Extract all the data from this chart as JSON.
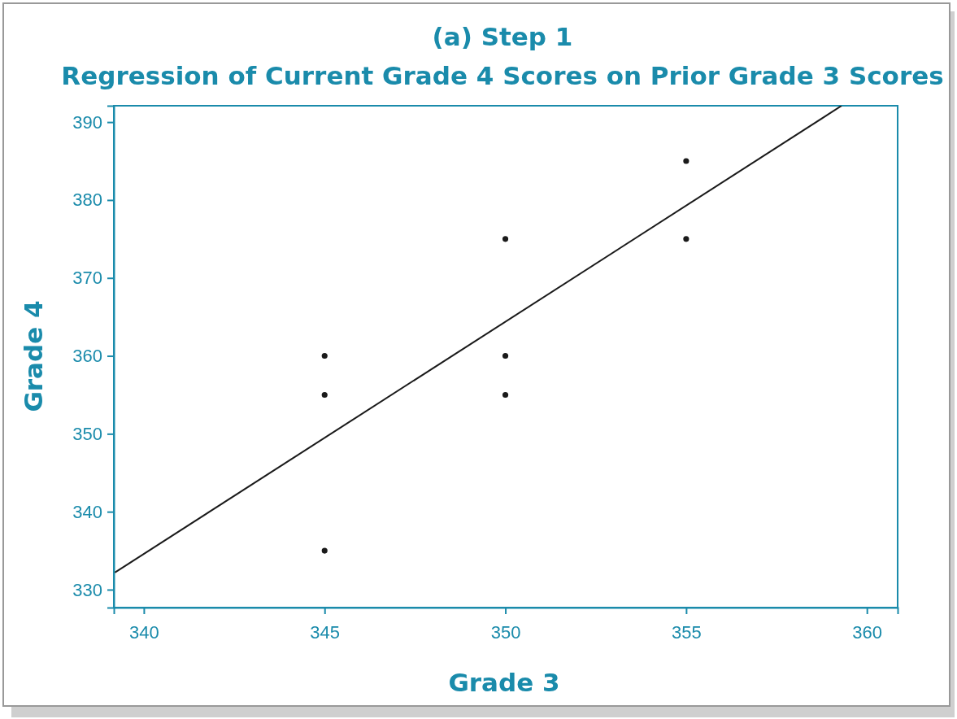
{
  "chart_data": {
    "type": "scatter",
    "title": "(a) Step 1",
    "subtitle": "Regression of Current Grade 4 Scores on Prior Grade 3 Scores",
    "xlabel": "Grade 3",
    "ylabel": "Grade 4",
    "xlim": [
      339.17,
      360.85
    ],
    "ylim": [
      327.7,
      392.1
    ],
    "xticks": [
      340,
      345,
      350,
      355,
      360
    ],
    "yticks": [
      330,
      340,
      350,
      360,
      370,
      380,
      390
    ],
    "grid": false,
    "series": [
      {
        "marker": "circle",
        "color": "#1a1a1a",
        "x": [
          345,
          345,
          345,
          350,
          350,
          350,
          355,
          355
        ],
        "values": [
          360,
          355,
          335,
          375,
          360,
          355,
          385,
          375
        ]
      },
      {
        "type": "line",
        "color": "#1a1a1a",
        "x": [
          339.2,
          359.3
        ],
        "values": [
          332.2,
          392.1
        ]
      }
    ]
  }
}
